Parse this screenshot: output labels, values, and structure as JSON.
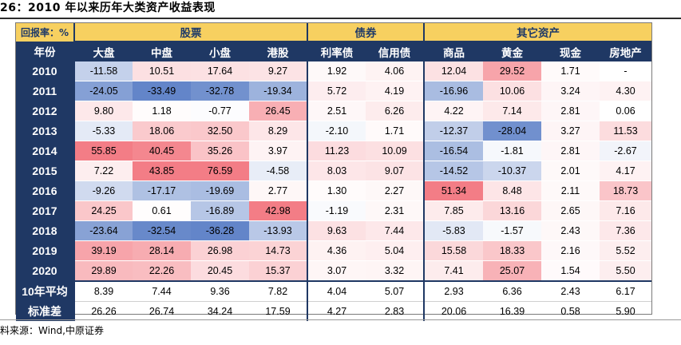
{
  "title": "26：2010 年以来历年大类资产收益表现",
  "corner_label": "回报率：%",
  "year_label": "年份",
  "categories": [
    {
      "label": "股票",
      "span": 4
    },
    {
      "label": "债券",
      "span": 2
    },
    {
      "label": "其它资产",
      "span": 4
    }
  ],
  "columns": [
    "大盘",
    "中盘",
    "小盘",
    "港股",
    "利率债",
    "信用债",
    "商品",
    "黄金",
    "现金",
    "房地产"
  ],
  "rows": [
    {
      "year": "2010",
      "values": [
        "-11.58",
        "10.51",
        "17.64",
        "9.27",
        "1.92",
        "4.06",
        "12.04",
        "29.52",
        "1.71",
        "-"
      ]
    },
    {
      "year": "2011",
      "values": [
        "-24.05",
        "-33.49",
        "-32.78",
        "-19.34",
        "5.72",
        "4.19",
        "-16.96",
        "10.06",
        "3.24",
        "4.30"
      ]
    },
    {
      "year": "2012",
      "values": [
        "9.80",
        "1.18",
        "-0.77",
        "26.45",
        "2.51",
        "6.26",
        "4.22",
        "7.14",
        "2.81",
        "0.06"
      ]
    },
    {
      "year": "2013",
      "values": [
        "-5.33",
        "18.06",
        "32.50",
        "8.29",
        "-2.10",
        "1.71",
        "-12.37",
        "-28.04",
        "3.27",
        "11.53"
      ]
    },
    {
      "year": "2014",
      "values": [
        "55.85",
        "40.45",
        "35.26",
        "3.97",
        "11.23",
        "10.09",
        "-16.54",
        "-1.81",
        "2.81",
        "-2.67"
      ]
    },
    {
      "year": "2015",
      "values": [
        "7.22",
        "43.85",
        "76.59",
        "-4.58",
        "8.03",
        "9.07",
        "-14.52",
        "-10.37",
        "2.01",
        "4.17"
      ]
    },
    {
      "year": "2016",
      "values": [
        "-9.26",
        "-17.17",
        "-19.69",
        "2.77",
        "1.30",
        "2.27",
        "51.34",
        "8.48",
        "2.11",
        "18.73"
      ]
    },
    {
      "year": "2017",
      "values": [
        "24.25",
        "0.61",
        "-16.89",
        "42.98",
        "-1.19",
        "2.31",
        "7.85",
        "13.16",
        "2.65",
        "7.16"
      ]
    },
    {
      "year": "2018",
      "values": [
        "-23.64",
        "-32.54",
        "-36.28",
        "-13.93",
        "9.63",
        "7.44",
        "-5.83",
        "-1.57",
        "2.43",
        "7.36"
      ]
    },
    {
      "year": "2019",
      "values": [
        "39.19",
        "28.14",
        "26.98",
        "14.73",
        "4.36",
        "5.04",
        "15.58",
        "18.33",
        "2.16",
        "5.52"
      ]
    },
    {
      "year": "2020",
      "values": [
        "29.89",
        "22.26",
        "20.45",
        "15.37",
        "3.07",
        "3.32",
        "7.41",
        "25.07",
        "1.54",
        "5.50"
      ]
    }
  ],
  "summary": [
    {
      "label": "10年平均",
      "values": [
        "8.39",
        "7.44",
        "9.36",
        "7.82",
        "4.04",
        "5.07",
        "2.93",
        "6.36",
        "2.43",
        "6.17"
      ]
    },
    {
      "label": "标准差",
      "values": [
        "26.26",
        "26.74",
        "34.24",
        "17.59",
        "4.27",
        "2.83",
        "20.06",
        "16.39",
        "0.58",
        "5.90"
      ]
    }
  ],
  "colors": {
    "header_navy": "#1f3864",
    "header_gold": "#f7d060",
    "positive_max": "#f26f78",
    "negative_max": "#5b7fc6"
  },
  "source": "料来源：Wind,中原证券"
}
